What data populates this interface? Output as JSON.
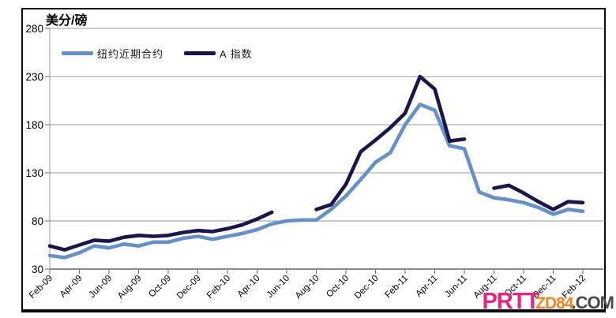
{
  "title": "美分/磅",
  "legend": [
    {
      "label": "纽约近期合约",
      "color": "#6690C8"
    },
    {
      "label": "A 指数",
      "color": "#1C1648"
    }
  ],
  "watermark": {
    "part1": "PRTT",
    "part1_color": "#E8247E",
    "part2": "ZD84",
    "part2_color": "#F5831F",
    "part3": ".COM",
    "part3_color": "#4A4A4C"
  },
  "chart_data": {
    "type": "line",
    "title": "美分/磅",
    "xlabel": "",
    "ylabel": "美分/磅",
    "ylim": [
      30,
      280
    ],
    "yticks": [
      30,
      80,
      130,
      180,
      230,
      280
    ],
    "grid": true,
    "legend_position": "top-left",
    "x": [
      "Feb-09",
      "Mar-09",
      "Apr-09",
      "May-09",
      "Jun-09",
      "Jul-09",
      "Aug-09",
      "Sep-09",
      "Oct-09",
      "Nov-09",
      "Dec-09",
      "Jan-10",
      "Feb-10",
      "Mar-10",
      "Apr-10",
      "May-10",
      "Jun-10",
      "Jul-10",
      "Aug-10",
      "Sep-10",
      "Oct-10",
      "Nov-10",
      "Dec-10",
      "Jan-11",
      "Feb-11",
      "Mar-11",
      "Apr-11",
      "May-11",
      "Jun-11",
      "Jul-11",
      "Aug-11",
      "Sep-11",
      "Oct-11",
      "Nov-11",
      "Dec-11",
      "Jan-12",
      "Feb-12"
    ],
    "x_tick_labels": [
      "Feb-09",
      "Apr-09",
      "Jun-09",
      "Aug-09",
      "Oct-09",
      "Dec-09",
      "Feb-10",
      "Apr-10",
      "Jun-10",
      "Aug-10",
      "Oct-10",
      "Dec-10",
      "Feb-11",
      "Apr-11",
      "Jun-11",
      "Aug-11",
      "Oct-11",
      "Dec-11",
      "Feb-12"
    ],
    "series": [
      {
        "name": "纽约近期合约",
        "color": "#6690C8",
        "values": [
          44,
          42,
          47,
          54,
          52,
          56,
          54,
          58,
          58,
          62,
          64,
          61,
          64,
          67,
          71,
          77,
          80,
          81,
          81,
          92,
          106,
          123,
          141,
          151,
          180,
          201,
          195,
          158,
          155,
          110,
          104,
          102,
          99,
          94,
          87,
          92,
          90
        ]
      },
      {
        "name": "A 指数",
        "color": "#1C1648",
        "values": [
          54,
          50,
          55,
          60,
          59,
          63,
          65,
          64,
          65,
          68,
          70,
          69,
          72,
          76,
          82,
          89,
          null,
          null,
          92,
          97,
          118,
          152,
          164,
          177,
          192,
          230,
          217,
          163,
          165,
          null,
          114,
          117,
          109,
          100,
          92,
          100,
          99
        ]
      }
    ],
    "axis_color": "#666666",
    "grid_color": "#9B9B9B"
  }
}
